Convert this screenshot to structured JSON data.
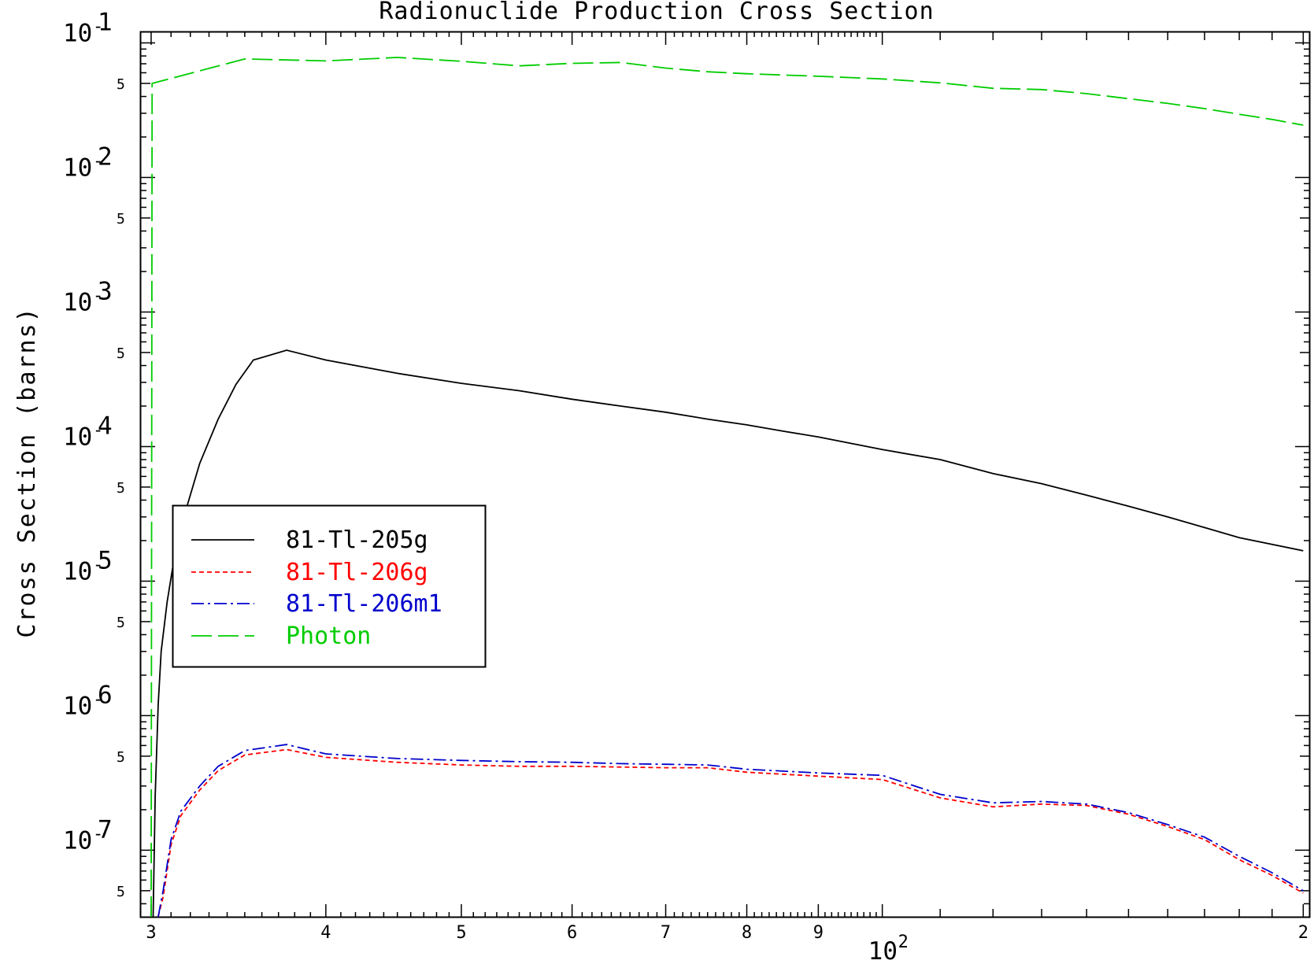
{
  "chart_data": {
    "type": "line",
    "title": "Radionuclide Production Cross Section",
    "xlabel": "",
    "ylabel": "Cross Section (barns)",
    "xscale": "log",
    "yscale": "log",
    "xlim": [
      29.5,
      202
    ],
    "ylim": [
      3.2e-08,
      0.12
    ],
    "grid": false,
    "legend_position": "left-middle",
    "x_axis": {
      "tick_labels": [
        {
          "value": 30,
          "text": "3"
        },
        {
          "value": 40,
          "text": "4"
        },
        {
          "value": 50,
          "text": "5"
        },
        {
          "value": 60,
          "text": "6"
        },
        {
          "value": 70,
          "text": "7"
        },
        {
          "value": 80,
          "text": "8"
        },
        {
          "value": 90,
          "text": "9"
        },
        {
          "value": 200,
          "text": "2"
        }
      ],
      "decade_label": {
        "value": 100,
        "base": "10",
        "exponent": "2"
      }
    },
    "y_axis": {
      "decade_labels": [
        {
          "value": 0.1,
          "base": "10",
          "minus": "-",
          "exponent": "1"
        },
        {
          "value": 0.01,
          "base": "10",
          "minus": "-",
          "exponent": "2"
        },
        {
          "value": 0.001,
          "base": "10",
          "minus": "-",
          "exponent": "3"
        },
        {
          "value": 0.0001,
          "base": "10",
          "minus": "-",
          "exponent": "4"
        },
        {
          "value": 1e-05,
          "base": "10",
          "minus": "-",
          "exponent": "5"
        },
        {
          "value": 1e-06,
          "base": "10",
          "minus": "-",
          "exponent": "6"
        },
        {
          "value": 1e-07,
          "base": "10",
          "minus": "-",
          "exponent": "7"
        }
      ],
      "five_labels": [
        {
          "value": 0.05,
          "text": "5"
        },
        {
          "value": 0.005,
          "text": "5"
        },
        {
          "value": 0.0005,
          "text": "5"
        },
        {
          "value": 5e-05,
          "text": "5"
        },
        {
          "value": 5e-06,
          "text": "5"
        },
        {
          "value": 5e-07,
          "text": "5"
        },
        {
          "value": 5e-08,
          "text": "5"
        }
      ]
    },
    "series": [
      {
        "name": "81-Tl-205g",
        "color": "#000000",
        "style": "solid",
        "points": [
          [
            30.1,
            3e-08
          ],
          [
            30.2,
            2.5e-07
          ],
          [
            30.35,
            1.2e-06
          ],
          [
            30.5,
            3e-06
          ],
          [
            30.8,
            7e-06
          ],
          [
            31.2,
            1.6e-05
          ],
          [
            31.8,
            3.5e-05
          ],
          [
            32.5,
            7.5e-05
          ],
          [
            33.5,
            0.00016
          ],
          [
            34.5,
            0.00029
          ],
          [
            35.5,
            0.00044
          ],
          [
            37.5,
            0.00052
          ],
          [
            40,
            0.00044
          ],
          [
            45,
            0.00035
          ],
          [
            50,
            0.000295
          ],
          [
            55,
            0.00026
          ],
          [
            60,
            0.000225
          ],
          [
            65,
            0.0002
          ],
          [
            70,
            0.00018
          ],
          [
            75,
            0.00016
          ],
          [
            80,
            0.000145
          ],
          [
            85,
            0.00013
          ],
          [
            90,
            0.000118
          ],
          [
            100,
            9.5e-05
          ],
          [
            110,
            8e-05
          ],
          [
            120,
            6.3e-05
          ],
          [
            130,
            5.3e-05
          ],
          [
            140,
            4.35e-05
          ],
          [
            150,
            3.6e-05
          ],
          [
            160,
            3e-05
          ],
          [
            170,
            2.5e-05
          ],
          [
            180,
            2.1e-05
          ],
          [
            200,
            1.68e-05
          ]
        ]
      },
      {
        "name": "81-Tl-206g",
        "color": "#ff0000",
        "style": "dashed",
        "points": [
          [
            30.35,
            3e-08
          ],
          [
            30.6,
            4.5e-08
          ],
          [
            31,
            1.1e-07
          ],
          [
            31.5,
            1.8e-07
          ],
          [
            32.5,
            2.8e-07
          ],
          [
            33.5,
            3.9e-07
          ],
          [
            35,
            5.1e-07
          ],
          [
            37.5,
            5.6e-07
          ],
          [
            40,
            4.9e-07
          ],
          [
            45,
            4.5e-07
          ],
          [
            50,
            4.3e-07
          ],
          [
            55,
            4.2e-07
          ],
          [
            60,
            4.2e-07
          ],
          [
            65,
            4.15e-07
          ],
          [
            70,
            4.1e-07
          ],
          [
            75,
            4.1e-07
          ],
          [
            80,
            3.8e-07
          ],
          [
            90,
            3.55e-07
          ],
          [
            100,
            3.35e-07
          ],
          [
            110,
            2.45e-07
          ],
          [
            120,
            2.1e-07
          ],
          [
            130,
            2.2e-07
          ],
          [
            140,
            2.15e-07
          ],
          [
            150,
            1.85e-07
          ],
          [
            160,
            1.5e-07
          ],
          [
            170,
            1.2e-07
          ],
          [
            180,
            8.5e-08
          ],
          [
            190,
            6.5e-08
          ],
          [
            200,
            4.8e-08
          ]
        ]
      },
      {
        "name": "81-Tl-206m1",
        "color": "#0000cc",
        "style": "dashdot",
        "points": [
          [
            30.35,
            3e-08
          ],
          [
            30.6,
            5e-08
          ],
          [
            31,
            1.2e-07
          ],
          [
            31.5,
            1.95e-07
          ],
          [
            32.5,
            3e-07
          ],
          [
            33.5,
            4.2e-07
          ],
          [
            35,
            5.5e-07
          ],
          [
            37.5,
            6.1e-07
          ],
          [
            40,
            5.2e-07
          ],
          [
            45,
            4.8e-07
          ],
          [
            50,
            4.65e-07
          ],
          [
            55,
            4.55e-07
          ],
          [
            60,
            4.5e-07
          ],
          [
            65,
            4.4e-07
          ],
          [
            70,
            4.35e-07
          ],
          [
            75,
            4.3e-07
          ],
          [
            80,
            4e-07
          ],
          [
            90,
            3.75e-07
          ],
          [
            100,
            3.6e-07
          ],
          [
            110,
            2.6e-07
          ],
          [
            120,
            2.25e-07
          ],
          [
            130,
            2.3e-07
          ],
          [
            140,
            2.2e-07
          ],
          [
            150,
            1.9e-07
          ],
          [
            160,
            1.55e-07
          ],
          [
            170,
            1.25e-07
          ],
          [
            180,
            9e-08
          ],
          [
            190,
            6.8e-08
          ],
          [
            200,
            5e-08
          ]
        ]
      },
      {
        "name": "Photon",
        "color": "#00cc00",
        "style": "longdash",
        "points": [
          [
            30,
            3e-08
          ],
          [
            30.05,
            0.05
          ],
          [
            35,
            0.076
          ],
          [
            40,
            0.0735
          ],
          [
            45,
            0.078
          ],
          [
            50,
            0.073
          ],
          [
            55,
            0.0675
          ],
          [
            60,
            0.0705
          ],
          [
            65,
            0.0715
          ],
          [
            70,
            0.065
          ],
          [
            75,
            0.061
          ],
          [
            80,
            0.059
          ],
          [
            90,
            0.0565
          ],
          [
            100,
            0.054
          ],
          [
            110,
            0.0505
          ],
          [
            120,
            0.046
          ],
          [
            130,
            0.045
          ],
          [
            140,
            0.042
          ],
          [
            150,
            0.0385
          ],
          [
            160,
            0.0355
          ],
          [
            170,
            0.0325
          ],
          [
            180,
            0.0295
          ],
          [
            190,
            0.027
          ],
          [
            200,
            0.0245
          ]
        ]
      }
    ]
  }
}
